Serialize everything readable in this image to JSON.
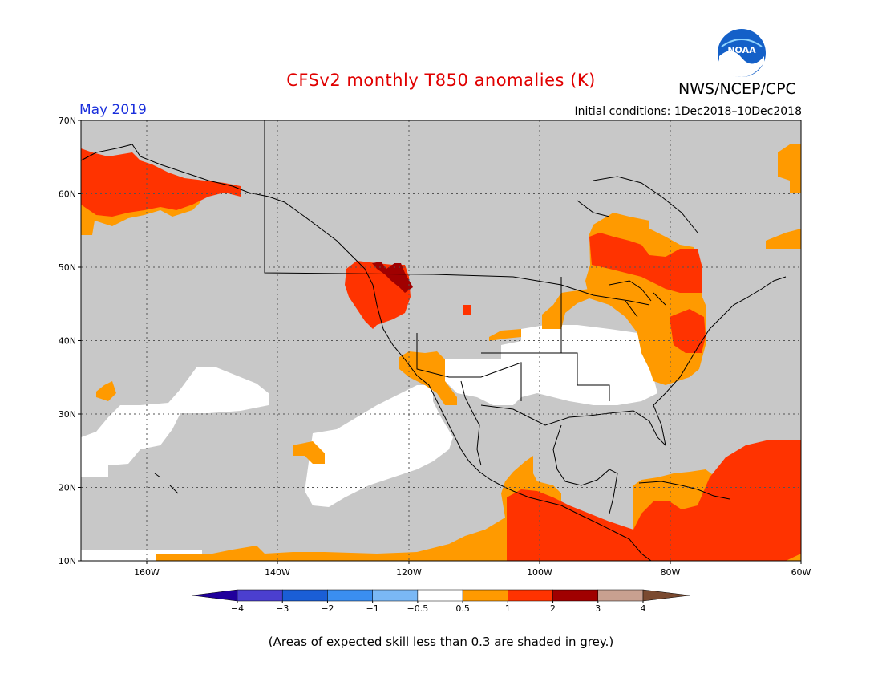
{
  "header": {
    "title": "CFSv2 monthly T850 anomalies (K)",
    "agency": "NWS/NCEP/CPC",
    "logo_text": "NOAA",
    "month": "May 2019",
    "initial_conditions": "Initial conditions: 1Dec2018–10Dec2018"
  },
  "map": {
    "lat_labels": [
      "70N",
      "60N",
      "50N",
      "40N",
      "30N",
      "20N",
      "10N"
    ],
    "lon_labels": [
      "160W",
      "140W",
      "120W",
      "100W",
      "80W",
      "60W"
    ],
    "skill_mask_color": "#c8c8c8"
  },
  "colorbar": {
    "tick_labels": [
      "−4",
      "−3",
      "−2",
      "−1",
      "−0.5",
      "0.5",
      "1",
      "2",
      "3",
      "4"
    ],
    "colors": [
      "#20009c",
      "#4b3fcf",
      "#1a5ed6",
      "#3a8ef0",
      "#7ab8f5",
      "#ffffff",
      "#ff9a00",
      "#ff3300",
      "#a00000",
      "#c8a090",
      "#7a4a30"
    ]
  },
  "footnote": "(Areas of expected skill less than 0.3 are shaded in grey.)"
}
